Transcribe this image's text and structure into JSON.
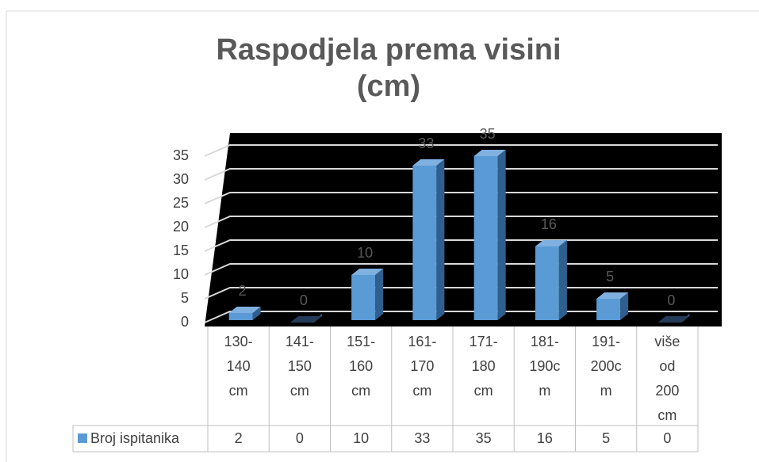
{
  "chart_data": {
    "type": "bar3d",
    "title": "Raspodjela prema visini (cm)",
    "categories": [
      "130-140 cm",
      "141-150 cm",
      "151-160 cm",
      "161-170 cm",
      "171-180 cm",
      "181-190cm",
      "191-200cm",
      "više od 200 cm"
    ],
    "series": [
      {
        "name": "Broj ispitanika",
        "color": "#5b9bd5",
        "values": [
          2,
          0,
          10,
          33,
          35,
          16,
          5,
          0
        ]
      }
    ],
    "ylim": [
      0,
      35
    ],
    "yticks": [
      0,
      5,
      10,
      15,
      20,
      25,
      30,
      35
    ],
    "grid": true,
    "data_table": true
  }
}
